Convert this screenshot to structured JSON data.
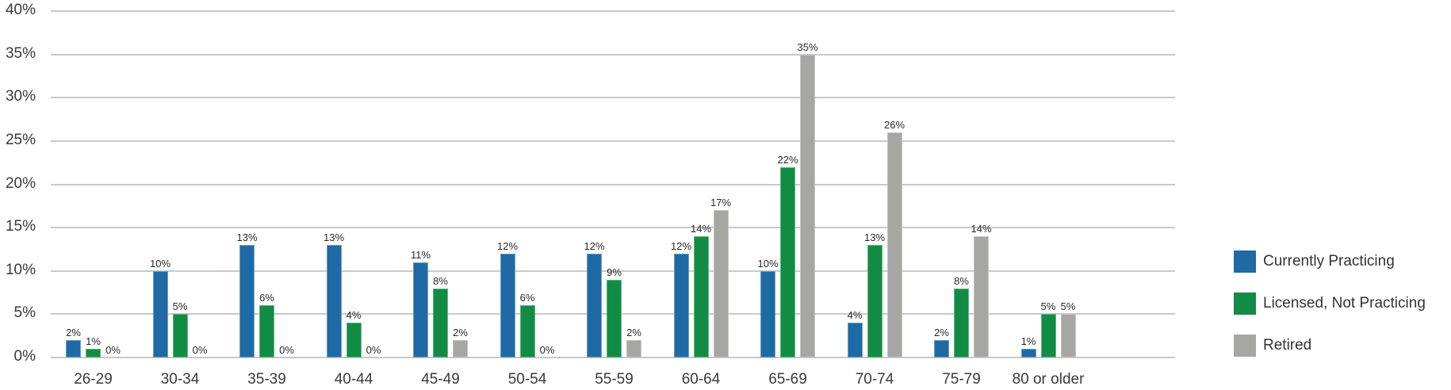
{
  "chart_data": {
    "type": "bar",
    "title": "",
    "xlabel": "",
    "ylabel": "",
    "ylim": [
      0,
      40
    ],
    "yticks": [
      "0%",
      "5%",
      "10%",
      "15%",
      "20%",
      "25%",
      "30%",
      "35%",
      "40%"
    ],
    "grid": true,
    "legend_position": "right",
    "categories": [
      "26-29",
      "30-34",
      "35-39",
      "40-44",
      "45-49",
      "50-54",
      "55-59",
      "60-64",
      "65-69",
      "70-74",
      "75-79",
      "80 or older"
    ],
    "series": [
      {
        "name": "Currently Practicing",
        "color": "#1f6aa5",
        "values": [
          2,
          10,
          13,
          13,
          11,
          12,
          12,
          12,
          10,
          4,
          2,
          1
        ]
      },
      {
        "name": "Licensed, Not Practicing",
        "color": "#128c44",
        "values": [
          1,
          5,
          6,
          4,
          8,
          6,
          9,
          14,
          22,
          13,
          8,
          5
        ]
      },
      {
        "name": "Retired",
        "color": "#a6a6a5",
        "values": [
          0,
          0,
          0,
          0,
          2,
          0,
          2,
          17,
          35,
          26,
          14,
          5
        ]
      }
    ],
    "value_suffix": "%"
  },
  "legend": {
    "items": [
      {
        "label": "Currently Practicing",
        "color": "#1f6aa5"
      },
      {
        "label": "Licensed, Not Practicing",
        "color": "#128c44"
      },
      {
        "label": "Retired",
        "color": "#a6a6a5"
      }
    ]
  }
}
